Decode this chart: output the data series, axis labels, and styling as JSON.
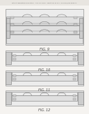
{
  "bg_color": "#f5f3f0",
  "line_color": "#777777",
  "dark_line": "#555555",
  "fill_light": "#ececec",
  "fill_mid": "#e0e0e0",
  "fill_dark": "#cccccc",
  "fill_side": "#d8d8d8",
  "fill_white": "#f8f8f8",
  "fig_labels": [
    "FIG. 9",
    "FIG. 10",
    "FIG. 11",
    "FIG. 12"
  ],
  "header_text": "Patent Application Publication   Aug. 20, 2013   Sheet 101 of 111   US 2013/0213648 A1"
}
